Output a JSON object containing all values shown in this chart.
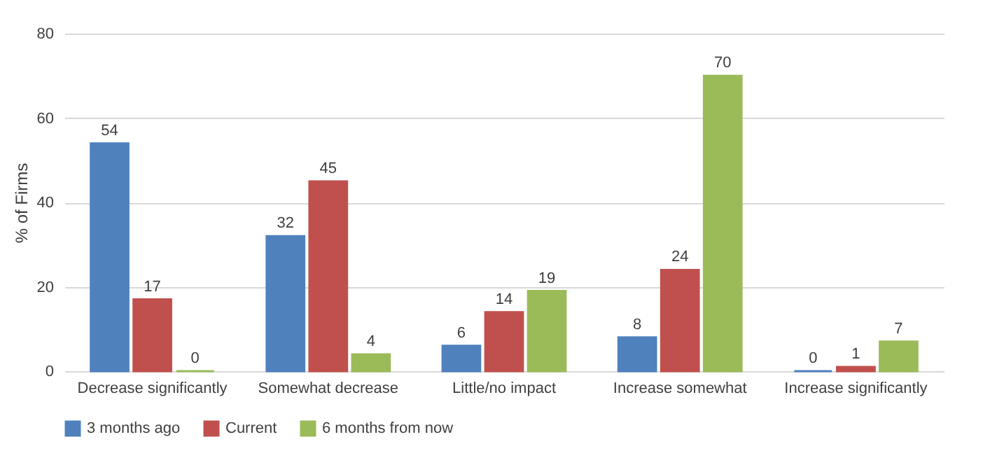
{
  "chart_data": {
    "type": "bar",
    "ylabel": "% of Firms",
    "categories": [
      "Decrease significantly",
      "Somewhat decrease",
      "Little/no impact",
      "Increase somewhat",
      "Increase significantly"
    ],
    "series": [
      {
        "name": "3 months ago",
        "color": "#4f81bd",
        "values": [
          54,
          32,
          6,
          8,
          0
        ]
      },
      {
        "name": "Current",
        "color": "#c0504d",
        "values": [
          17,
          45,
          14,
          24,
          1
        ]
      },
      {
        "name": "6 months from now",
        "color": "#9bbb59",
        "values": [
          0,
          4,
          19,
          70,
          7
        ]
      }
    ],
    "ylim": [
      0,
      80
    ],
    "yticks": [
      0,
      20,
      40,
      60,
      80
    ],
    "grid": "y",
    "legend": "bottom",
    "data_labels": true
  }
}
